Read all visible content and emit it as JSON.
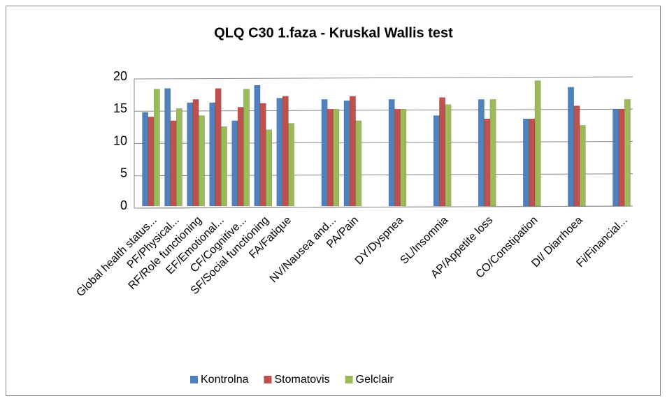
{
  "chart_data": {
    "type": "bar",
    "title": "QLQ C30 1.faza - Kruskal Wallis test",
    "categories": [
      "Global health status...",
      "PF/Physical...",
      "RF/Role functioning",
      "EF/Emotional...",
      "CF/Cognitive...",
      "SF/Social functioning",
      "FA/Fatique",
      null,
      "NV/Nausea and...",
      "PA/Pain",
      null,
      "DY/Dyspnea",
      null,
      "SL/Insomnia",
      null,
      "AP/Appetite loss",
      null,
      "CO/Constipation",
      null,
      "DI/ Diarrhoea",
      null,
      "Fi/Financial..."
    ],
    "series": [
      {
        "name": "Kontrolna",
        "color": "#4f81bd",
        "values": [
          14.5,
          18.2,
          16.0,
          16.0,
          13.2,
          18.7,
          16.7,
          null,
          16.5,
          16.3,
          null,
          16.5,
          null,
          14.0,
          null,
          16.5,
          null,
          13.5,
          null,
          18.4,
          null,
          15.0
        ]
      },
      {
        "name": "Stomatovis",
        "color": "#c0504d",
        "values": [
          13.8,
          13.2,
          16.5,
          18.2,
          15.3,
          15.9,
          17.0,
          null,
          15.0,
          17.0,
          null,
          15.0,
          null,
          16.8,
          null,
          13.5,
          null,
          13.5,
          null,
          15.5,
          null,
          15.0
        ]
      },
      {
        "name": "Gelclair",
        "color": "#9bbb59",
        "values": [
          18.1,
          15.1,
          14.0,
          12.3,
          18.1,
          11.8,
          12.8,
          null,
          15.0,
          13.2,
          null,
          15.0,
          null,
          15.7,
          null,
          16.5,
          null,
          19.4,
          null,
          12.5,
          null,
          16.5
        ]
      }
    ],
    "ylim": [
      0,
      20
    ],
    "yticks": [
      0,
      5,
      10,
      15,
      20
    ],
    "grid": true,
    "legend": "bottom"
  }
}
